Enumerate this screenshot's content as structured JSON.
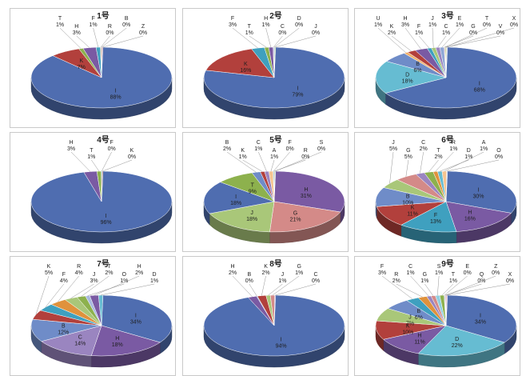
{
  "colors": {
    "I": "#4f6db0",
    "K": "#b2403c",
    "T": "#8db14d",
    "H": "#7a5aa3",
    "F": "#3fa0bf",
    "R": "#e0923c",
    "B": "#6f8cc8",
    "Z": "#c96b6b",
    "J": "#a9c779",
    "C": "#9a85c0",
    "D": "#66bcd2",
    "U": "#f0b06a",
    "E": "#8fa6d6",
    "G": "#d48a88",
    "V": "#c4d99c",
    "X": "#b3a7d4",
    "S": "#91cfe0",
    "A": "#f5c490",
    "O": "#a9b9e0",
    "Q": "#e0a9a7",
    "1号": "#6d8fa8",
    "2号": "#8c8c8c",
    "3号": "#a0a0a0",
    "4号": "#9a9a9a",
    "5号": "#909090",
    "6号": "#989898",
    "7号": "#949494",
    "8号": "#9c9c9c",
    "9号": "#969696",
    "other": "#aab4c4"
  },
  "chart_data": [
    {
      "type": "pie",
      "title": "1号",
      "slices": [
        {
          "label": "I",
          "value": 88
        },
        {
          "label": "K",
          "value": 7
        },
        {
          "label": "T",
          "value": 1
        },
        {
          "label": "H",
          "value": 3
        },
        {
          "label": "F",
          "value": 1
        },
        {
          "label": "R",
          "value": 0
        },
        {
          "label": "B",
          "value": 0
        },
        {
          "label": "Z",
          "value": 0
        }
      ]
    },
    {
      "type": "pie",
      "title": "2号",
      "slices": [
        {
          "label": "I",
          "value": 79
        },
        {
          "label": "K",
          "value": 16
        },
        {
          "label": "F",
          "value": 3
        },
        {
          "label": "T",
          "value": 1
        },
        {
          "label": "H",
          "value": 1
        },
        {
          "label": "C",
          "value": 0
        },
        {
          "label": "D",
          "value": 0
        },
        {
          "label": "J",
          "value": 0
        }
      ]
    },
    {
      "type": "pie",
      "title": "3号",
      "slices": [
        {
          "label": "I",
          "value": 68
        },
        {
          "label": "D",
          "value": 18
        },
        {
          "label": "B",
          "value": 6
        },
        {
          "label": "U",
          "value": 1
        },
        {
          "label": "K",
          "value": 2
        },
        {
          "label": "H",
          "value": 3
        },
        {
          "label": "F",
          "value": 1
        },
        {
          "label": "J",
          "value": 1
        },
        {
          "label": "C",
          "value": 1
        },
        {
          "label": "E",
          "value": 1
        },
        {
          "label": "G",
          "value": 0
        },
        {
          "label": "T",
          "value": 0
        },
        {
          "label": "V",
          "value": 0
        },
        {
          "label": "X",
          "value": 0
        }
      ]
    },
    {
      "type": "pie",
      "title": "4号",
      "slices": [
        {
          "label": "I",
          "value": 96
        },
        {
          "label": "H",
          "value": 3
        },
        {
          "label": "T",
          "value": 1
        },
        {
          "label": "F",
          "value": 0
        },
        {
          "label": "K",
          "value": 0
        }
      ]
    },
    {
      "type": "pie",
      "title": "5号",
      "slices": [
        {
          "label": "H",
          "value": 31
        },
        {
          "label": "G",
          "value": 21
        },
        {
          "label": "J",
          "value": 18
        },
        {
          "label": "I",
          "value": 18
        },
        {
          "label": "T",
          "value": 9
        },
        {
          "label": "B",
          "value": 2
        },
        {
          "label": "K",
          "value": 1
        },
        {
          "label": "C",
          "value": 1
        },
        {
          "label": "A",
          "value": 1
        },
        {
          "label": "F",
          "value": 0
        },
        {
          "label": "R",
          "value": 0
        },
        {
          "label": "S",
          "value": 0
        }
      ]
    },
    {
      "type": "pie",
      "title": "6号",
      "slices": [
        {
          "label": "I",
          "value": 30
        },
        {
          "label": "H",
          "value": 16
        },
        {
          "label": "F",
          "value": 13
        },
        {
          "label": "K",
          "value": 11
        },
        {
          "label": "B",
          "value": 10
        },
        {
          "label": "J",
          "value": 5
        },
        {
          "label": "G",
          "value": 5
        },
        {
          "label": "C",
          "value": 2
        },
        {
          "label": "T",
          "value": 2
        },
        {
          "label": "R",
          "value": 1
        },
        {
          "label": "D",
          "value": 1
        },
        {
          "label": "A",
          "value": 1
        },
        {
          "label": "O",
          "value": 0
        }
      ]
    },
    {
      "type": "pie",
      "title": "7号",
      "slices": [
        {
          "label": "I",
          "value": 34
        },
        {
          "label": "H",
          "value": 18
        },
        {
          "label": "C",
          "value": 14
        },
        {
          "label": "B",
          "value": 12
        },
        {
          "label": "K",
          "value": 5
        },
        {
          "label": "F",
          "value": 4
        },
        {
          "label": "R",
          "value": 4
        },
        {
          "label": "J",
          "value": 3
        },
        {
          "label": "T",
          "value": 2
        },
        {
          "label": "O",
          "value": 1
        },
        {
          "label": "H",
          "value": 2
        },
        {
          "label": "D",
          "value": 1
        }
      ]
    },
    {
      "type": "pie",
      "title": "8号",
      "slices": [
        {
          "label": "I",
          "value": 94
        },
        {
          "label": "H",
          "value": 2
        },
        {
          "label": "B",
          "value": 0
        },
        {
          "label": "K",
          "value": 2
        },
        {
          "label": "J",
          "value": 1
        },
        {
          "label": "G",
          "value": 1
        },
        {
          "label": "C",
          "value": 0
        }
      ]
    },
    {
      "type": "pie",
      "title": "9号",
      "slices": [
        {
          "label": "I",
          "value": 34
        },
        {
          "label": "D",
          "value": 22
        },
        {
          "label": "H",
          "value": 11
        },
        {
          "label": "K",
          "value": 10
        },
        {
          "label": "J",
          "value": 7
        },
        {
          "label": "B",
          "value": 6
        },
        {
          "label": "F",
          "value": 3
        },
        {
          "label": "R",
          "value": 2
        },
        {
          "label": "C",
          "value": 1
        },
        {
          "label": "G",
          "value": 1
        },
        {
          "label": "S",
          "value": 1
        },
        {
          "label": "T",
          "value": 1
        },
        {
          "label": "E",
          "value": 0
        },
        {
          "label": "Q",
          "value": 0
        },
        {
          "label": "Z",
          "value": 0
        },
        {
          "label": "X",
          "value": 0
        }
      ]
    }
  ]
}
